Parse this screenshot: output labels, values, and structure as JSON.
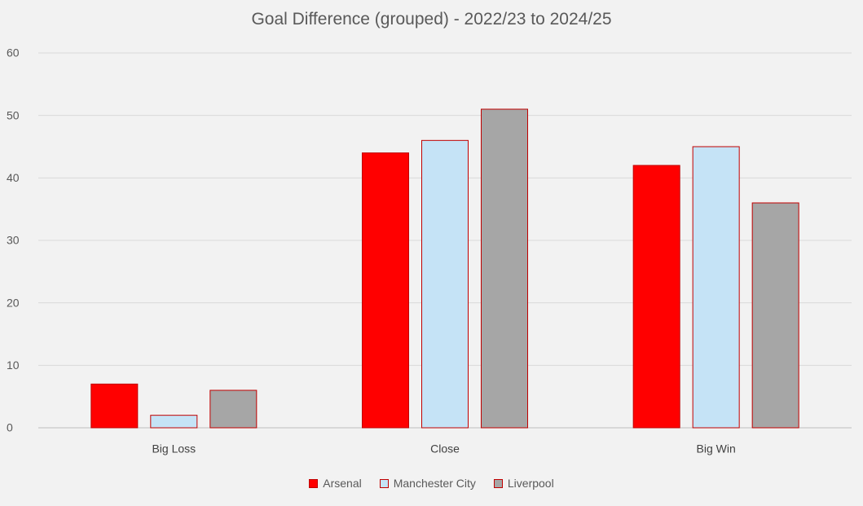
{
  "chart_data": {
    "type": "bar",
    "title": "Goal Difference (grouped) - 2022/23 to 2024/25",
    "xlabel": "",
    "ylabel": "",
    "categories": [
      "Big Loss",
      "Close",
      "Big Win"
    ],
    "series": [
      {
        "name": "Arsenal",
        "values": [
          7,
          44,
          42
        ],
        "color": "#ff0000"
      },
      {
        "name": "Manchester City",
        "values": [
          2,
          46,
          45
        ],
        "color": "#c5e3f6"
      },
      {
        "name": "Liverpool",
        "values": [
          6,
          51,
          36
        ],
        "color": "#a6a6a6"
      }
    ],
    "ylim": [
      0,
      60
    ],
    "yticks": [
      "0",
      "10",
      "20",
      "30",
      "40",
      "50",
      "60"
    ],
    "grid": true,
    "legend_position": "bottom",
    "bar_edge_color": "#c00000",
    "gridline_color": "#d9d9d9"
  }
}
